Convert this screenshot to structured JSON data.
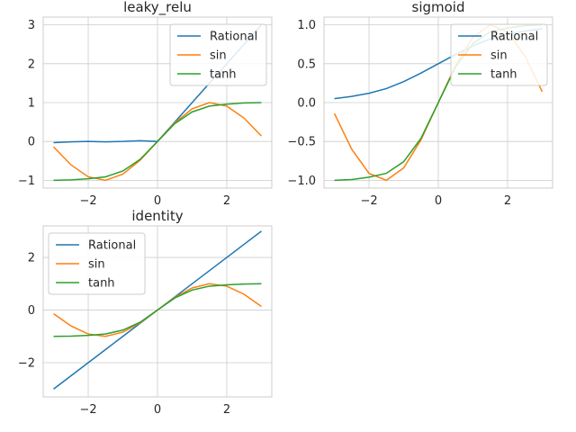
{
  "colors": {
    "Rational": "#1f77b4",
    "sin": "#ff7f0e",
    "tanh": "#2ca02c",
    "grid": "#cccccc",
    "text": "#262626"
  },
  "chart_data": [
    {
      "type": "line",
      "title": "leaky_relu",
      "xlim": [
        -3.3,
        3.3
      ],
      "ylim": [
        -1.2,
        3.2
      ],
      "xticks": [
        -2,
        0,
        2
      ],
      "yticks": [
        -1,
        0,
        1,
        2,
        3
      ],
      "xtick_labels": [
        "−2",
        "0",
        "2"
      ],
      "ytick_labels": [
        "−1",
        "0",
        "1",
        "2",
        "3"
      ],
      "grid": true,
      "legend_position": "top-right",
      "series": [
        {
          "name": "Rational",
          "color": "#1f77b4",
          "x": [
            -3.0,
            -2.5,
            -2.0,
            -1.5,
            -1.0,
            -0.5,
            0.0,
            0.5,
            1.0,
            1.5,
            2.0,
            2.5,
            3.0
          ],
          "y": [
            -0.03,
            -0.01,
            0.0,
            -0.01,
            0.0,
            0.02,
            0.0,
            0.5,
            1.0,
            1.5,
            2.0,
            2.5,
            3.0
          ]
        },
        {
          "name": "sin",
          "color": "#ff7f0e",
          "x": [
            -3.0,
            -2.5,
            -2.0,
            -1.5,
            -1.0,
            -0.5,
            0.0,
            0.5,
            1.0,
            1.5,
            2.0,
            2.5,
            3.0
          ],
          "y": [
            -0.14,
            -0.6,
            -0.91,
            -1.0,
            -0.84,
            -0.48,
            0.0,
            0.48,
            0.84,
            1.0,
            0.91,
            0.6,
            0.14
          ]
        },
        {
          "name": "tanh",
          "color": "#2ca02c",
          "x": [
            -3.0,
            -2.5,
            -2.0,
            -1.5,
            -1.0,
            -0.5,
            0.0,
            0.5,
            1.0,
            1.5,
            2.0,
            2.5,
            3.0
          ],
          "y": [
            -1.0,
            -0.99,
            -0.96,
            -0.91,
            -0.76,
            -0.46,
            0.0,
            0.46,
            0.76,
            0.91,
            0.96,
            0.99,
            1.0
          ]
        }
      ]
    },
    {
      "type": "line",
      "title": "sigmoid",
      "xlim": [
        -3.3,
        3.3
      ],
      "ylim": [
        -1.1,
        1.1
      ],
      "xticks": [
        -2,
        0,
        2
      ],
      "yticks": [
        -1,
        -0.5,
        0,
        0.5,
        1
      ],
      "xtick_labels": [
        "−2",
        "0",
        "2"
      ],
      "ytick_labels": [
        "−1.0",
        "−0.5",
        "0.0",
        "0.5",
        "1.0"
      ],
      "grid": true,
      "legend_position": "top-right",
      "series": [
        {
          "name": "Rational",
          "color": "#1f77b4",
          "x": [
            -3.0,
            -2.5,
            -2.0,
            -1.5,
            -1.0,
            -0.5,
            0.0,
            0.5,
            1.0,
            1.5,
            2.0,
            2.5,
            3.0
          ],
          "y": [
            0.05,
            0.08,
            0.12,
            0.18,
            0.27,
            0.38,
            0.5,
            0.62,
            0.73,
            0.82,
            0.88,
            0.92,
            0.95
          ]
        },
        {
          "name": "sin",
          "color": "#ff7f0e",
          "x": [
            -3.0,
            -2.5,
            -2.0,
            -1.5,
            -1.0,
            -0.5,
            0.0,
            0.5,
            1.0,
            1.5,
            2.0,
            2.5,
            3.0
          ],
          "y": [
            -0.14,
            -0.6,
            -0.91,
            -1.0,
            -0.84,
            -0.48,
            0.0,
            0.48,
            0.84,
            1.0,
            0.91,
            0.6,
            0.14
          ]
        },
        {
          "name": "tanh",
          "color": "#2ca02c",
          "x": [
            -3.0,
            -2.5,
            -2.0,
            -1.5,
            -1.0,
            -0.5,
            0.0,
            0.5,
            1.0,
            1.5,
            2.0,
            2.5,
            3.0
          ],
          "y": [
            -1.0,
            -0.99,
            -0.96,
            -0.91,
            -0.76,
            -0.46,
            0.0,
            0.46,
            0.76,
            0.91,
            0.96,
            0.99,
            1.0
          ]
        }
      ]
    },
    {
      "type": "line",
      "title": "identity",
      "xlim": [
        -3.3,
        3.3
      ],
      "ylim": [
        -3.3,
        3.2
      ],
      "xticks": [
        -2,
        0,
        2
      ],
      "yticks": [
        -2,
        0,
        2
      ],
      "xtick_labels": [
        "−2",
        "0",
        "2"
      ],
      "ytick_labels": [
        "−2",
        "0",
        "2"
      ],
      "grid": true,
      "legend_position": "top-left",
      "series": [
        {
          "name": "Rational",
          "color": "#1f77b4",
          "x": [
            -3.0,
            -2.5,
            -2.0,
            -1.5,
            -1.0,
            -0.5,
            0.0,
            0.5,
            1.0,
            1.5,
            2.0,
            2.5,
            3.0
          ],
          "y": [
            -3.0,
            -2.5,
            -2.0,
            -1.5,
            -1.0,
            -0.5,
            0.0,
            0.5,
            1.0,
            1.5,
            2.0,
            2.5,
            3.0
          ]
        },
        {
          "name": "sin",
          "color": "#ff7f0e",
          "x": [
            -3.0,
            -2.5,
            -2.0,
            -1.5,
            -1.0,
            -0.5,
            0.0,
            0.5,
            1.0,
            1.5,
            2.0,
            2.5,
            3.0
          ],
          "y": [
            -0.14,
            -0.6,
            -0.91,
            -1.0,
            -0.84,
            -0.48,
            0.0,
            0.48,
            0.84,
            1.0,
            0.91,
            0.6,
            0.14
          ]
        },
        {
          "name": "tanh",
          "color": "#2ca02c",
          "x": [
            -3.0,
            -2.5,
            -2.0,
            -1.5,
            -1.0,
            -0.5,
            0.0,
            0.5,
            1.0,
            1.5,
            2.0,
            2.5,
            3.0
          ],
          "y": [
            -1.0,
            -0.99,
            -0.96,
            -0.91,
            -0.76,
            -0.46,
            0.0,
            0.46,
            0.76,
            0.91,
            0.96,
            0.99,
            1.0
          ]
        }
      ]
    }
  ]
}
